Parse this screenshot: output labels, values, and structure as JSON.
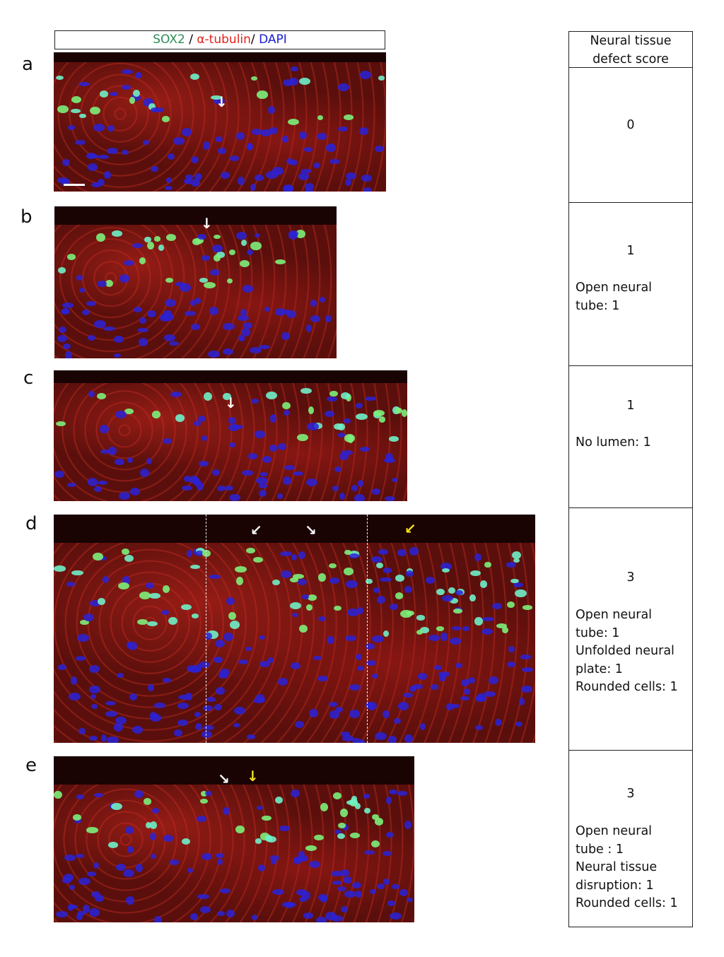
{
  "legend": {
    "sox2": "SOX2",
    "sep1": " / ",
    "tubulin": "α-tubulin",
    "sep2": "/ ",
    "dapi": "DAPI",
    "colors": {
      "sox2": "#2e8b57",
      "tubulin": "#e0231c",
      "dapi": "#1a1ad6"
    }
  },
  "table": {
    "header": "Neural tissue\ndefect score"
  },
  "panels": [
    {
      "label": "a",
      "score": "0",
      "notes": "",
      "arrows": [
        "white"
      ],
      "scale_bar": true
    },
    {
      "label": "b",
      "score": "1",
      "notes": "Open neural\ntube: 1",
      "arrows": [
        "white"
      ]
    },
    {
      "label": "c",
      "score": "1",
      "notes": "No lumen: 1",
      "arrows": [
        "white"
      ]
    },
    {
      "label": "d",
      "score": "3",
      "notes": "Open neural\ntube: 1\nUnfolded neural\nplate: 1\nRounded cells: 1",
      "arrows": [
        "white",
        "white",
        "yellow"
      ],
      "dashed_lines": 2
    },
    {
      "label": "e",
      "score": "3",
      "notes": "Open neural\ntube : 1\nNeural tissue\ndisruption: 1\nRounded cells: 1",
      "arrows": [
        "white",
        "yellow"
      ]
    }
  ],
  "arrow_colors": {
    "white": "#ffffff",
    "yellow": "#f2e21c"
  }
}
